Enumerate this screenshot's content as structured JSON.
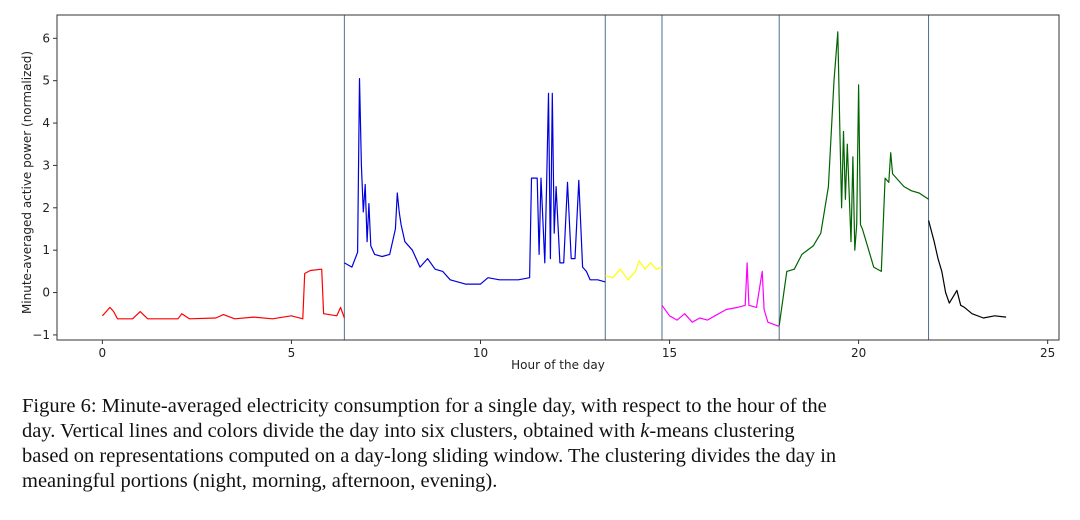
{
  "chart_data": {
    "type": "line",
    "xlabel": "Hour of the day",
    "ylabel": "Minute-averaged active power (normalized)",
    "xlim": [
      -1.2,
      25.3
    ],
    "ylim": [
      -1.12,
      6.55
    ],
    "xticks": [
      0,
      5,
      10,
      15,
      20,
      25
    ],
    "yticks": [
      -1,
      0,
      1,
      2,
      3,
      4,
      5,
      6
    ],
    "cluster_boundaries": [
      6.4,
      13.3,
      14.8,
      17.9,
      21.85
    ],
    "series": [
      {
        "name": "cluster 1",
        "color": "#ff0000",
        "points": [
          [
            0.0,
            -0.55
          ],
          [
            0.1,
            -0.45
          ],
          [
            0.2,
            -0.35
          ],
          [
            0.3,
            -0.45
          ],
          [
            0.4,
            -0.62
          ],
          [
            0.8,
            -0.62
          ],
          [
            1.0,
            -0.45
          ],
          [
            1.2,
            -0.62
          ],
          [
            2.0,
            -0.62
          ],
          [
            2.1,
            -0.5
          ],
          [
            2.3,
            -0.62
          ],
          [
            3.0,
            -0.6
          ],
          [
            3.2,
            -0.52
          ],
          [
            3.5,
            -0.62
          ],
          [
            4.0,
            -0.58
          ],
          [
            4.5,
            -0.62
          ],
          [
            5.0,
            -0.55
          ],
          [
            5.3,
            -0.62
          ],
          [
            5.35,
            0.45
          ],
          [
            5.5,
            0.52
          ],
          [
            5.8,
            0.55
          ],
          [
            5.85,
            -0.5
          ],
          [
            6.2,
            -0.55
          ],
          [
            6.3,
            -0.35
          ],
          [
            6.4,
            -0.6
          ]
        ]
      },
      {
        "name": "cluster 2",
        "color": "#0000dd",
        "points": [
          [
            6.4,
            0.7
          ],
          [
            6.6,
            0.6
          ],
          [
            6.75,
            0.95
          ],
          [
            6.8,
            5.05
          ],
          [
            6.85,
            3.0
          ],
          [
            6.9,
            1.9
          ],
          [
            6.95,
            2.55
          ],
          [
            7.0,
            1.2
          ],
          [
            7.05,
            2.1
          ],
          [
            7.1,
            1.1
          ],
          [
            7.2,
            0.9
          ],
          [
            7.4,
            0.85
          ],
          [
            7.6,
            0.9
          ],
          [
            7.75,
            1.5
          ],
          [
            7.8,
            2.35
          ],
          [
            7.85,
            1.9
          ],
          [
            7.9,
            1.6
          ],
          [
            8.0,
            1.2
          ],
          [
            8.2,
            1.0
          ],
          [
            8.4,
            0.6
          ],
          [
            8.6,
            0.8
          ],
          [
            8.8,
            0.55
          ],
          [
            9.0,
            0.5
          ],
          [
            9.2,
            0.3
          ],
          [
            9.6,
            0.2
          ],
          [
            10.0,
            0.2
          ],
          [
            10.2,
            0.35
          ],
          [
            10.5,
            0.3
          ],
          [
            11.0,
            0.3
          ],
          [
            11.3,
            0.35
          ],
          [
            11.35,
            2.7
          ],
          [
            11.5,
            2.7
          ],
          [
            11.55,
            0.9
          ],
          [
            11.6,
            2.7
          ],
          [
            11.7,
            0.7
          ],
          [
            11.75,
            2.65
          ],
          [
            11.8,
            4.7
          ],
          [
            11.85,
            0.8
          ],
          [
            11.9,
            4.7
          ],
          [
            11.95,
            1.4
          ],
          [
            12.0,
            2.5
          ],
          [
            12.1,
            0.7
          ],
          [
            12.2,
            0.7
          ],
          [
            12.3,
            2.6
          ],
          [
            12.4,
            0.8
          ],
          [
            12.5,
            0.8
          ],
          [
            12.6,
            2.65
          ],
          [
            12.7,
            0.6
          ],
          [
            12.8,
            0.5
          ],
          [
            12.9,
            0.3
          ],
          [
            13.1,
            0.3
          ],
          [
            13.3,
            0.25
          ]
        ]
      },
      {
        "name": "cluster 3",
        "color": "#ffff00",
        "points": [
          [
            13.3,
            0.4
          ],
          [
            13.5,
            0.35
          ],
          [
            13.7,
            0.55
          ],
          [
            13.9,
            0.3
          ],
          [
            14.1,
            0.5
          ],
          [
            14.2,
            0.75
          ],
          [
            14.35,
            0.55
          ],
          [
            14.5,
            0.7
          ],
          [
            14.65,
            0.55
          ],
          [
            14.8,
            0.6
          ]
        ]
      },
      {
        "name": "cluster 4",
        "color": "#ff00ff",
        "points": [
          [
            14.8,
            -0.3
          ],
          [
            15.0,
            -0.55
          ],
          [
            15.2,
            -0.65
          ],
          [
            15.4,
            -0.5
          ],
          [
            15.6,
            -0.7
          ],
          [
            15.8,
            -0.6
          ],
          [
            16.0,
            -0.65
          ],
          [
            16.2,
            -0.55
          ],
          [
            16.5,
            -0.4
          ],
          [
            16.8,
            -0.35
          ],
          [
            17.0,
            -0.3
          ],
          [
            17.05,
            0.7
          ],
          [
            17.1,
            -0.3
          ],
          [
            17.3,
            -0.35
          ],
          [
            17.45,
            0.5
          ],
          [
            17.5,
            -0.4
          ],
          [
            17.6,
            -0.7
          ],
          [
            17.75,
            -0.75
          ],
          [
            17.9,
            -0.8
          ]
        ]
      },
      {
        "name": "cluster 5",
        "color": "#006400",
        "points": [
          [
            17.9,
            -0.78
          ],
          [
            18.1,
            0.5
          ],
          [
            18.3,
            0.55
          ],
          [
            18.5,
            0.9
          ],
          [
            18.8,
            1.1
          ],
          [
            19.0,
            1.4
          ],
          [
            19.2,
            2.5
          ],
          [
            19.35,
            5.0
          ],
          [
            19.45,
            6.15
          ],
          [
            19.5,
            4.0
          ],
          [
            19.55,
            2.0
          ],
          [
            19.6,
            3.8
          ],
          [
            19.65,
            2.2
          ],
          [
            19.7,
            3.5
          ],
          [
            19.8,
            1.2
          ],
          [
            19.85,
            3.2
          ],
          [
            19.9,
            1.0
          ],
          [
            19.95,
            1.6
          ],
          [
            20.0,
            4.9
          ],
          [
            20.05,
            1.6
          ],
          [
            20.1,
            1.5
          ],
          [
            20.2,
            1.2
          ],
          [
            20.4,
            0.6
          ],
          [
            20.6,
            0.5
          ],
          [
            20.7,
            2.7
          ],
          [
            20.8,
            2.6
          ],
          [
            20.85,
            3.3
          ],
          [
            20.9,
            2.8
          ],
          [
            21.0,
            2.7
          ],
          [
            21.2,
            2.5
          ],
          [
            21.4,
            2.4
          ],
          [
            21.6,
            2.35
          ],
          [
            21.85,
            2.2
          ]
        ]
      },
      {
        "name": "cluster 6",
        "color": "#000000",
        "points": [
          [
            21.85,
            1.7
          ],
          [
            22.0,
            1.2
          ],
          [
            22.1,
            0.8
          ],
          [
            22.2,
            0.5
          ],
          [
            22.3,
            0.0
          ],
          [
            22.4,
            -0.25
          ],
          [
            22.5,
            -0.1
          ],
          [
            22.6,
            0.05
          ],
          [
            22.7,
            -0.3
          ],
          [
            22.8,
            -0.35
          ],
          [
            23.0,
            -0.5
          ],
          [
            23.3,
            -0.6
          ],
          [
            23.6,
            -0.55
          ],
          [
            23.9,
            -0.58
          ]
        ]
      }
    ]
  },
  "caption": {
    "lines": [
      {
        "pre": "Figure 6: Minute-averaged electricity consumption for a single day, with respect to the hour of the"
      },
      {
        "pre": "day.  Vertical lines and colors divide the day into six clusters, obtained with ",
        "em": "k",
        "post": "-means clustering"
      },
      {
        "pre": "based on representations computed on a day-long sliding window. The clustering divides the day in"
      },
      {
        "pre": "meaningful portions (night, morning, afternoon, evening)."
      }
    ]
  }
}
